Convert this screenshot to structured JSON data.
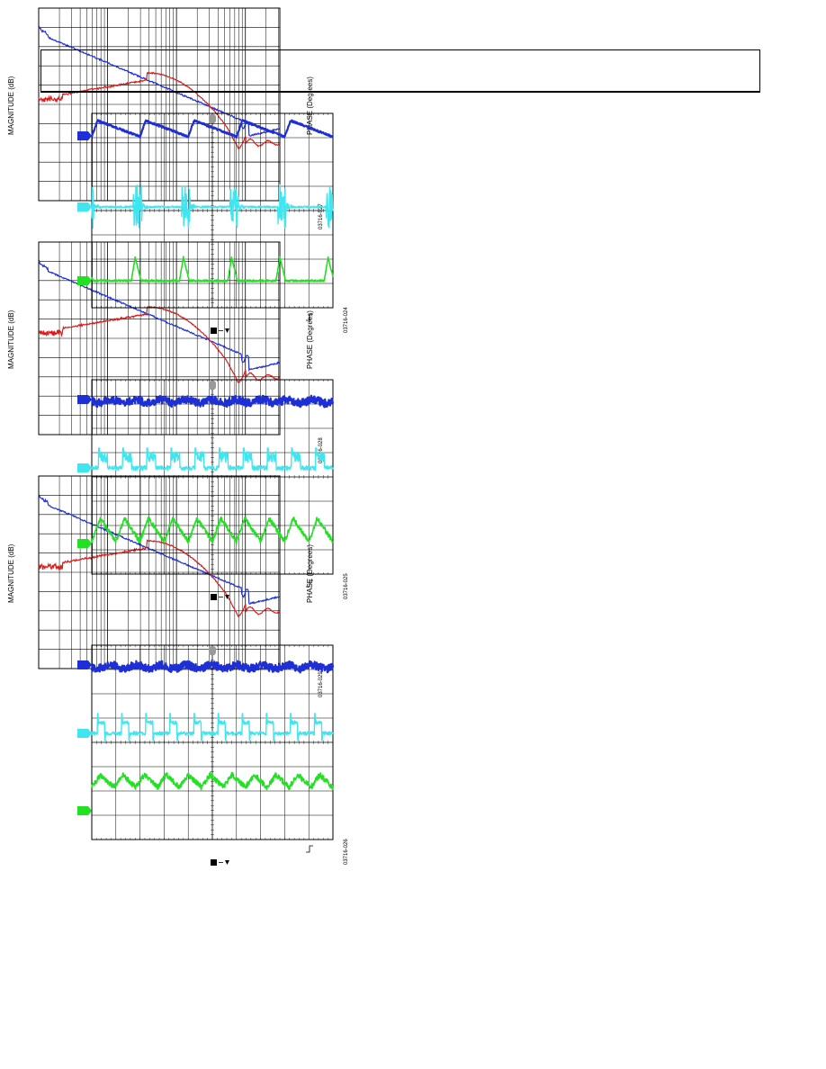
{
  "colors": {
    "ch1": "#1f2fd6",
    "ch2": "#3fe6f0",
    "ch3": "#22e022",
    "magnitude": "#1f2fd6",
    "phase": "#e01818",
    "grid": "#000000",
    "marker": "#1f6fe0"
  },
  "scope_figures": [
    {
      "id": "03716-024",
      "ch1": "sawtooth-slow",
      "ch2": "burst",
      "ch3": "pulse"
    },
    {
      "id": "03716-025",
      "ch1": "noise",
      "ch2": "square-noisy",
      "ch3": "triangle"
    },
    {
      "id": "03716-026",
      "ch1": "noise",
      "ch2": "square",
      "ch3": "triangle-fast"
    }
  ],
  "bode_figures": [
    {
      "id": "03716-027",
      "magnitude_label": "MAGNITUDE (dB)",
      "phase_label": "PHASE (Degrees)"
    },
    {
      "id": "03716-028",
      "magnitude_label": "MAGNITUDE (dB)",
      "phase_label": "PHASE (Degrees)"
    },
    {
      "id": "03716-029",
      "magnitude_label": "MAGNITUDE (dB)",
      "phase_label": "PHASE (Degrees)"
    }
  ],
  "trigger_icon": "trigger-icon",
  "marker_icon": "channel-marker-icon"
}
